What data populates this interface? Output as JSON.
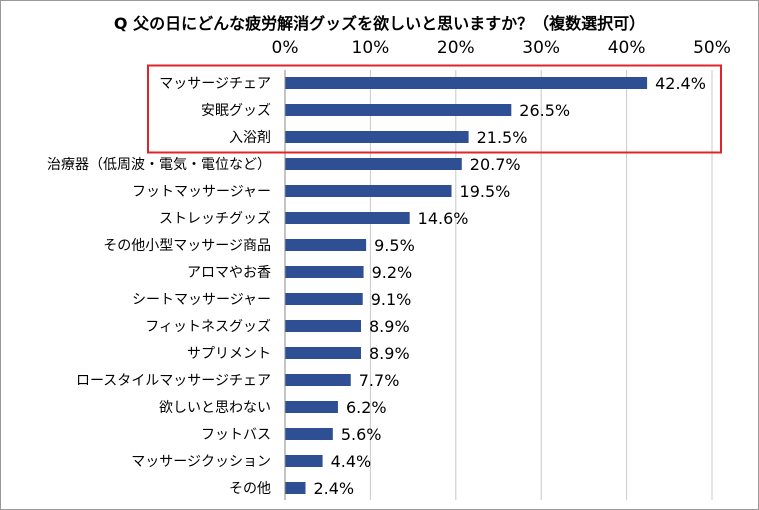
{
  "chart_data": {
    "type": "bar",
    "orientation": "horizontal",
    "title": "Q 父の日にどんな疲労解消グッズを欲しいと思いますか？（複数選択可）",
    "xlim": [
      0,
      50
    ],
    "x_ticks": [
      "0%",
      "10%",
      "20%",
      "30%",
      "40%",
      "50%"
    ],
    "x_tick_values": [
      0,
      10,
      20,
      30,
      40,
      50
    ],
    "x_axis_position": "top",
    "categories": [
      "マッサージチェア",
      "安眠グッズ",
      "入浴剤",
      "治療器（低周波・電気・電位など）",
      "フットマッサージャー",
      "ストレッチグッズ",
      "その他小型マッサージ商品",
      "アロマやお香",
      "シートマッサージャー",
      "フィットネスグッズ",
      "サプリメント",
      "ロースタイルマッサージチェア",
      "欲しいと思わない",
      "フットバス",
      "マッサージクッション",
      "その他"
    ],
    "values": [
      42.4,
      26.5,
      21.5,
      20.7,
      19.5,
      14.6,
      9.5,
      9.2,
      9.1,
      8.9,
      8.9,
      7.7,
      6.2,
      5.6,
      4.4,
      2.4
    ],
    "value_labels": [
      "42.4%",
      "26.5%",
      "21.5%",
      "20.7%",
      "19.5%",
      "14.6%",
      "9.5%",
      "9.2%",
      "9.1%",
      "8.9%",
      "8.9%",
      "7.7%",
      "6.2%",
      "5.6%",
      "4.4%",
      "2.4%"
    ],
    "grid": "vertical",
    "highlight_top_n": 3,
    "colors": {
      "bar": "#2E4F93",
      "grid": "#c8c8c8",
      "highlight_box": "#E0242B"
    }
  }
}
